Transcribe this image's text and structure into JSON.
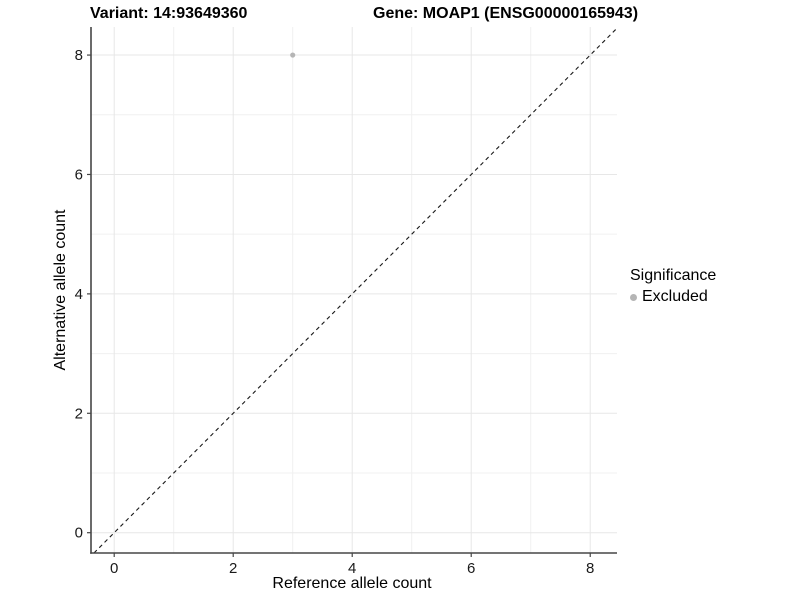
{
  "title": {
    "variant": "Variant: 14:93649360",
    "gene": "Gene: MOAP1 (ENSG00000165943)"
  },
  "chart_data": {
    "type": "scatter",
    "xlabel": "Reference allele count",
    "ylabel": "Alternative allele count",
    "x_ticks": [
      0,
      2,
      4,
      6,
      8
    ],
    "y_ticks": [
      0,
      2,
      4,
      6,
      8
    ],
    "minor_ticks": [
      1,
      3,
      5,
      7
    ],
    "xlim": [
      -0.39,
      8.45
    ],
    "ylim": [
      -0.34,
      8.47
    ],
    "grid": true,
    "points": [
      {
        "x": 3,
        "y": 8,
        "series": "Excluded"
      }
    ],
    "reference_line": {
      "type": "identity",
      "style": "dashed"
    },
    "legend": {
      "title": "Significance",
      "position": "right",
      "entries": [
        {
          "label": "Excluded",
          "color": "#b5b5b5"
        }
      ]
    }
  },
  "colors": {
    "background": "#ffffff",
    "grid_major": "#e7e7e7",
    "grid_minor": "#f0f0f0",
    "axis_line": "#464646",
    "tick_text": "#1a1a1a",
    "dashed_line": "#1a1a1a",
    "point": "#b5b5b5"
  }
}
